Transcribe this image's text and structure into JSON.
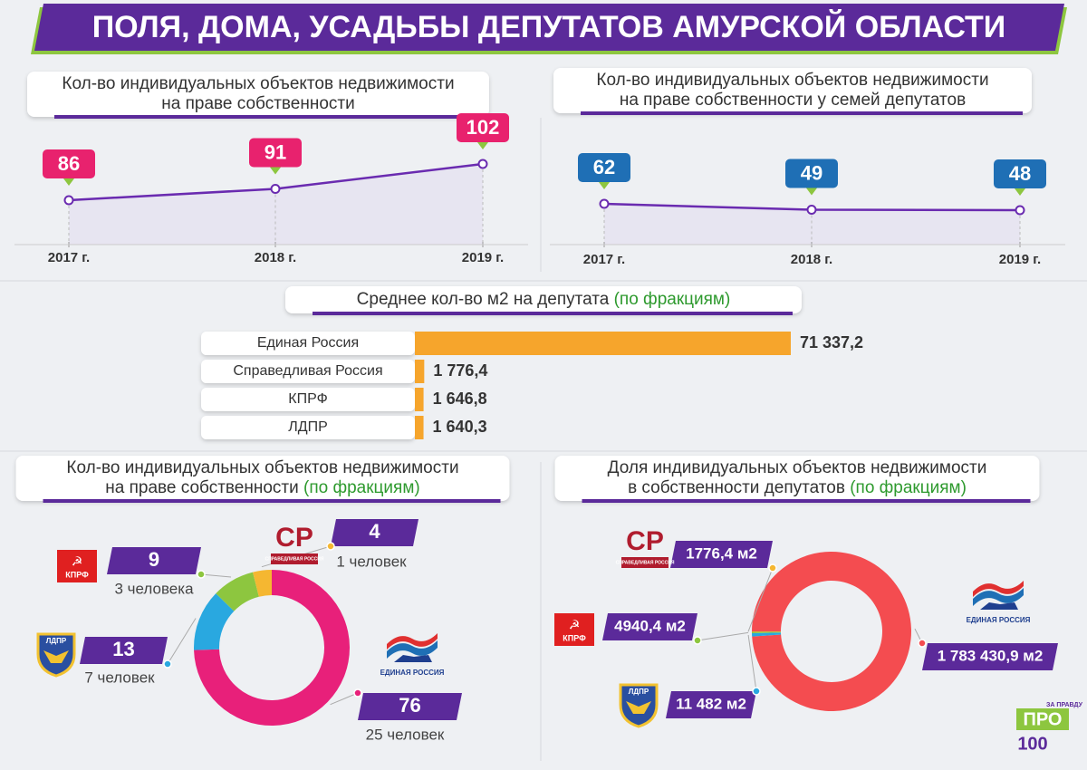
{
  "header": {
    "title": "ПОЛЯ, ДОМА, УСАДЬБЫ ДЕПУТАТОВ АМУРСКОЙ ОБЛАСТИ"
  },
  "chart_data": [
    {
      "type": "line",
      "title": [
        "Кол-во индивидуальных объектов недвижимости",
        "на праве собственности"
      ],
      "categories": [
        "2017 г.",
        "2018 г.",
        "2019 г."
      ],
      "values": [
        86,
        91,
        102
      ],
      "color": "#6a2bb0",
      "label_color": "#e8226e"
    },
    {
      "type": "line",
      "title": [
        "Кол-во индивидуальных объектов недвижимости",
        "на праве собственности у семей депутатов"
      ],
      "categories": [
        "2017 г.",
        "2018 г.",
        "2019 г."
      ],
      "values": [
        62,
        49,
        48
      ],
      "color": "#6a2bb0",
      "label_color": "#1f6fb5"
    },
    {
      "type": "bar",
      "title": [
        "Среднее кол-во м2 на депутата"
      ],
      "title_note": "(по фракциям)",
      "categories": [
        "Единая Россия",
        "Справедливая Россия",
        "КПРФ",
        "ЛДПР"
      ],
      "values": [
        71337.2,
        1776.4,
        1646.8,
        1640.3
      ],
      "value_labels": [
        "71 337,2",
        "1 776,4",
        "1 646,8",
        "1 640,3"
      ],
      "color": "#f6a52c"
    },
    {
      "type": "donut",
      "title": [
        "Кол-во индивидуальных объектов недвижимости",
        "на праве собственности"
      ],
      "title_note": "(по фракциям)",
      "categories": [
        "ЕДИНАЯ РОССИЯ",
        "ЛДПР",
        "КПРФ",
        "СПРАВЕДЛИВАЯ РОССИЯ"
      ],
      "sr_mark": "СР",
      "values": [
        76,
        13,
        9,
        4
      ],
      "notes": [
        "25 человек",
        "7 человек",
        "3 человека",
        "1 человек"
      ],
      "colors": [
        "#e8207a",
        "#29a8e0",
        "#8dc63f",
        "#f5b731"
      ]
    },
    {
      "type": "donut",
      "title": [
        "Доля индивидуальных объектов недвижимости",
        "в собственности депутатов"
      ],
      "title_note": "(по фракциям)",
      "categories": [
        "ЕДИНАЯ РОССИЯ",
        "ЛДПР",
        "КПРФ",
        "СПРАВЕДЛИВАЯ РОССИЯ"
      ],
      "sr_mark": "СР",
      "values": [
        1783430.9,
        11482,
        4940.4,
        1776.4
      ],
      "value_labels": [
        "1 783 430,9 м2",
        "11 482 м2",
        "4940,4 м2",
        "1776,4 м2"
      ],
      "colors": [
        "#f44c50",
        "#29a8e0",
        "#8dc63f",
        "#f5b731"
      ]
    }
  ],
  "brand": {
    "name": "ПРО",
    "small": "ЗА ПРАВДУ",
    "number": "100"
  }
}
